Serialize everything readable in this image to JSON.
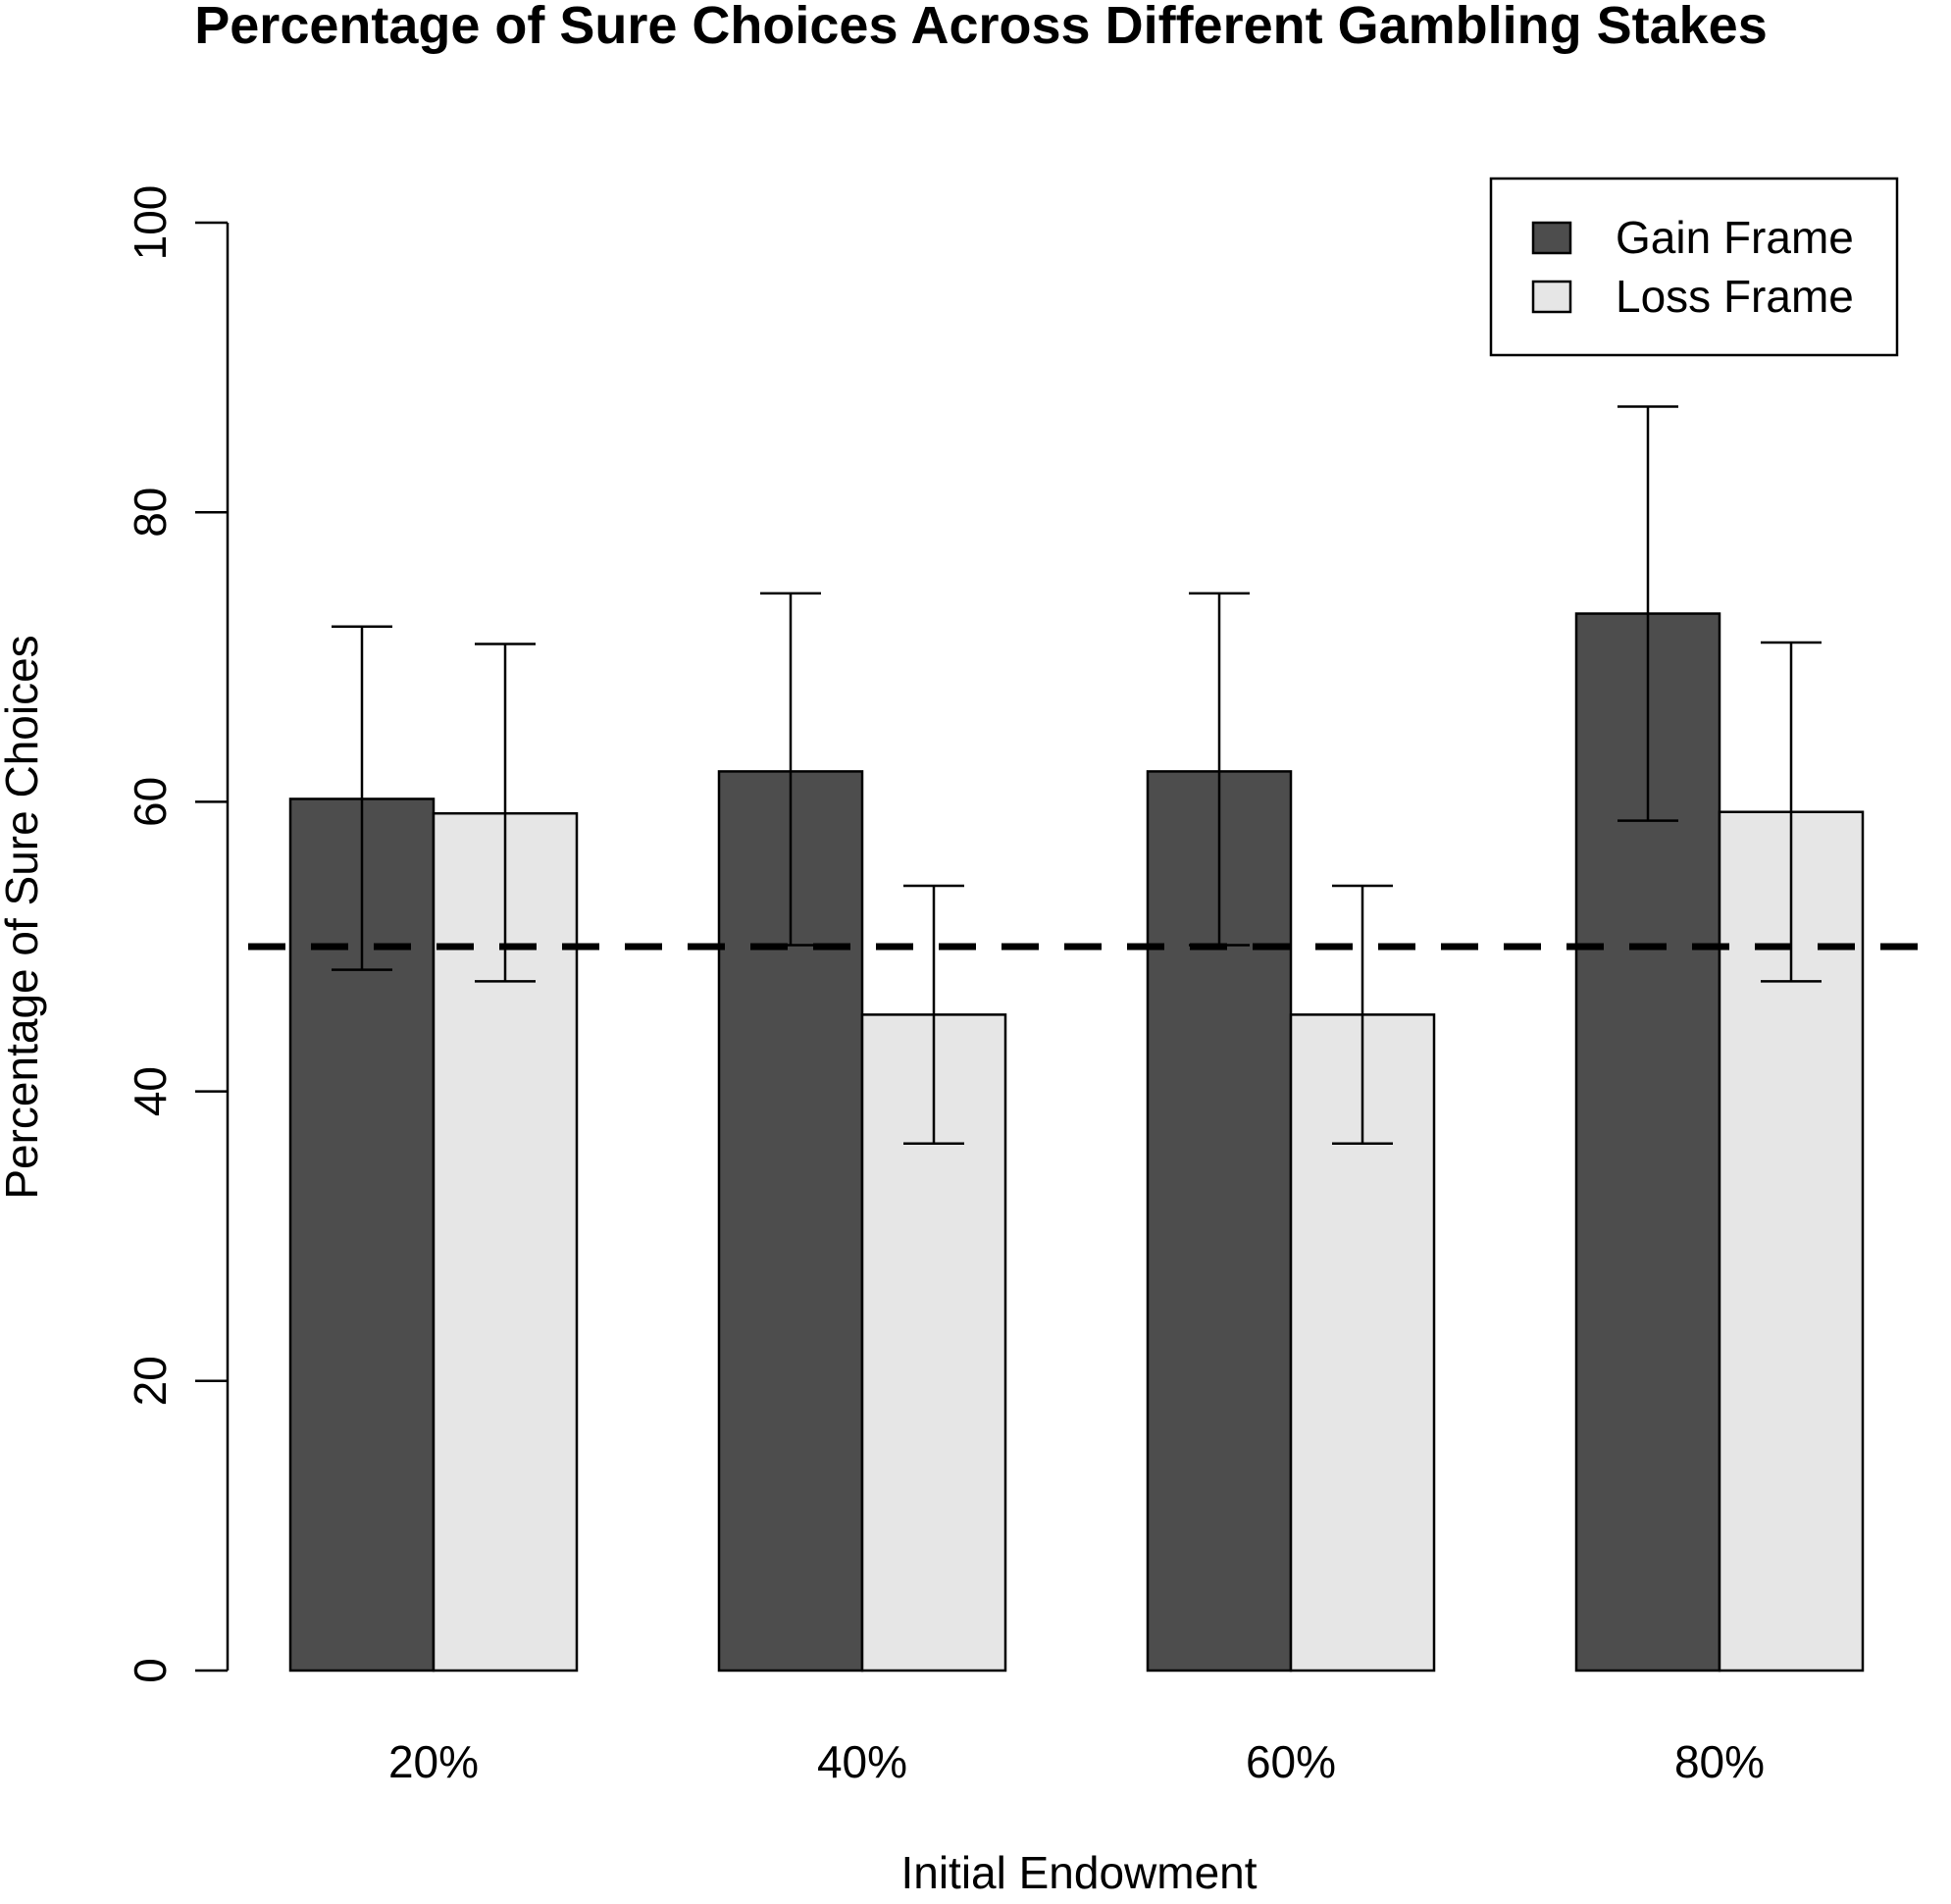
{
  "chart_data": {
    "type": "bar",
    "title": "Percentage of Sure Choices Across Different Gambling Stakes",
    "xlabel": "Initial Endowment",
    "ylabel": "Percentage of Sure Choices",
    "categories": [
      "20%",
      "40%",
      "60%",
      "80%"
    ],
    "ylim": [
      0,
      100
    ],
    "yticks": [
      0,
      20,
      40,
      60,
      80,
      100
    ],
    "reference_line": {
      "y": 50,
      "style": "dashed"
    },
    "legend": {
      "position": "top-right"
    },
    "series": [
      {
        "name": "Gain Frame",
        "color": "#4d4d4d",
        "values": [
          60.2,
          62.1,
          62.1,
          73.0
        ],
        "error_low": [
          48.4,
          50.1,
          50.1,
          58.7
        ],
        "error_high": [
          72.1,
          74.4,
          74.4,
          87.3
        ]
      },
      {
        "name": "Loss Frame",
        "color": "#e6e6e6",
        "values": [
          59.2,
          45.3,
          45.3,
          59.3
        ],
        "error_low": [
          47.6,
          36.4,
          36.4,
          47.6
        ],
        "error_high": [
          70.9,
          54.2,
          54.2,
          71.0
        ]
      }
    ]
  }
}
